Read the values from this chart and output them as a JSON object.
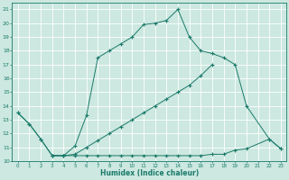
{
  "xlabel": "Humidex (Indice chaleur)",
  "xlim": [
    -0.5,
    23.5
  ],
  "ylim": [
    10,
    21.5
  ],
  "yticks": [
    10,
    11,
    12,
    13,
    14,
    15,
    16,
    17,
    18,
    19,
    20,
    21
  ],
  "xticks": [
    0,
    1,
    2,
    3,
    4,
    5,
    6,
    7,
    8,
    9,
    10,
    11,
    12,
    13,
    14,
    15,
    16,
    17,
    18,
    19,
    20,
    21,
    22,
    23
  ],
  "background_color": "#cce8e0",
  "grid_color": "#ffffff",
  "line_color": "#1a7a6a",
  "line1_x": [
    0,
    1,
    2,
    3,
    4,
    5,
    6,
    7,
    8,
    9,
    10,
    11,
    12,
    13,
    14,
    15,
    16,
    17,
    18,
    19,
    20,
    22,
    23
  ],
  "line1_y": [
    13.5,
    12.7,
    11.6,
    10.4,
    10.4,
    11.1,
    13.3,
    17.5,
    18.0,
    18.5,
    19.0,
    19.9,
    20.0,
    20.2,
    21.0,
    19.0,
    18.0,
    17.8,
    17.5,
    17.0,
    14.0,
    11.6,
    10.9
  ],
  "line2_x": [
    3,
    4,
    5,
    6,
    7,
    8,
    9,
    10,
    11,
    12,
    13,
    14,
    15,
    16,
    17,
    18,
    19,
    20,
    22,
    23
  ],
  "line2_y": [
    10.4,
    10.4,
    10.4,
    10.4,
    10.4,
    10.4,
    10.4,
    10.4,
    10.4,
    10.4,
    10.4,
    10.4,
    10.4,
    10.4,
    10.5,
    10.5,
    10.8,
    10.9,
    11.6,
    10.9
  ],
  "line3_x": [
    0,
    1,
    2,
    3,
    4,
    5,
    6,
    7,
    8,
    9,
    10,
    11,
    12,
    13,
    14,
    15,
    16,
    17
  ],
  "line3_y": [
    13.5,
    12.7,
    11.6,
    10.4,
    10.4,
    10.5,
    11.0,
    11.5,
    12.0,
    12.5,
    13.0,
    13.5,
    14.0,
    14.5,
    15.0,
    15.5,
    16.2,
    17.0
  ]
}
